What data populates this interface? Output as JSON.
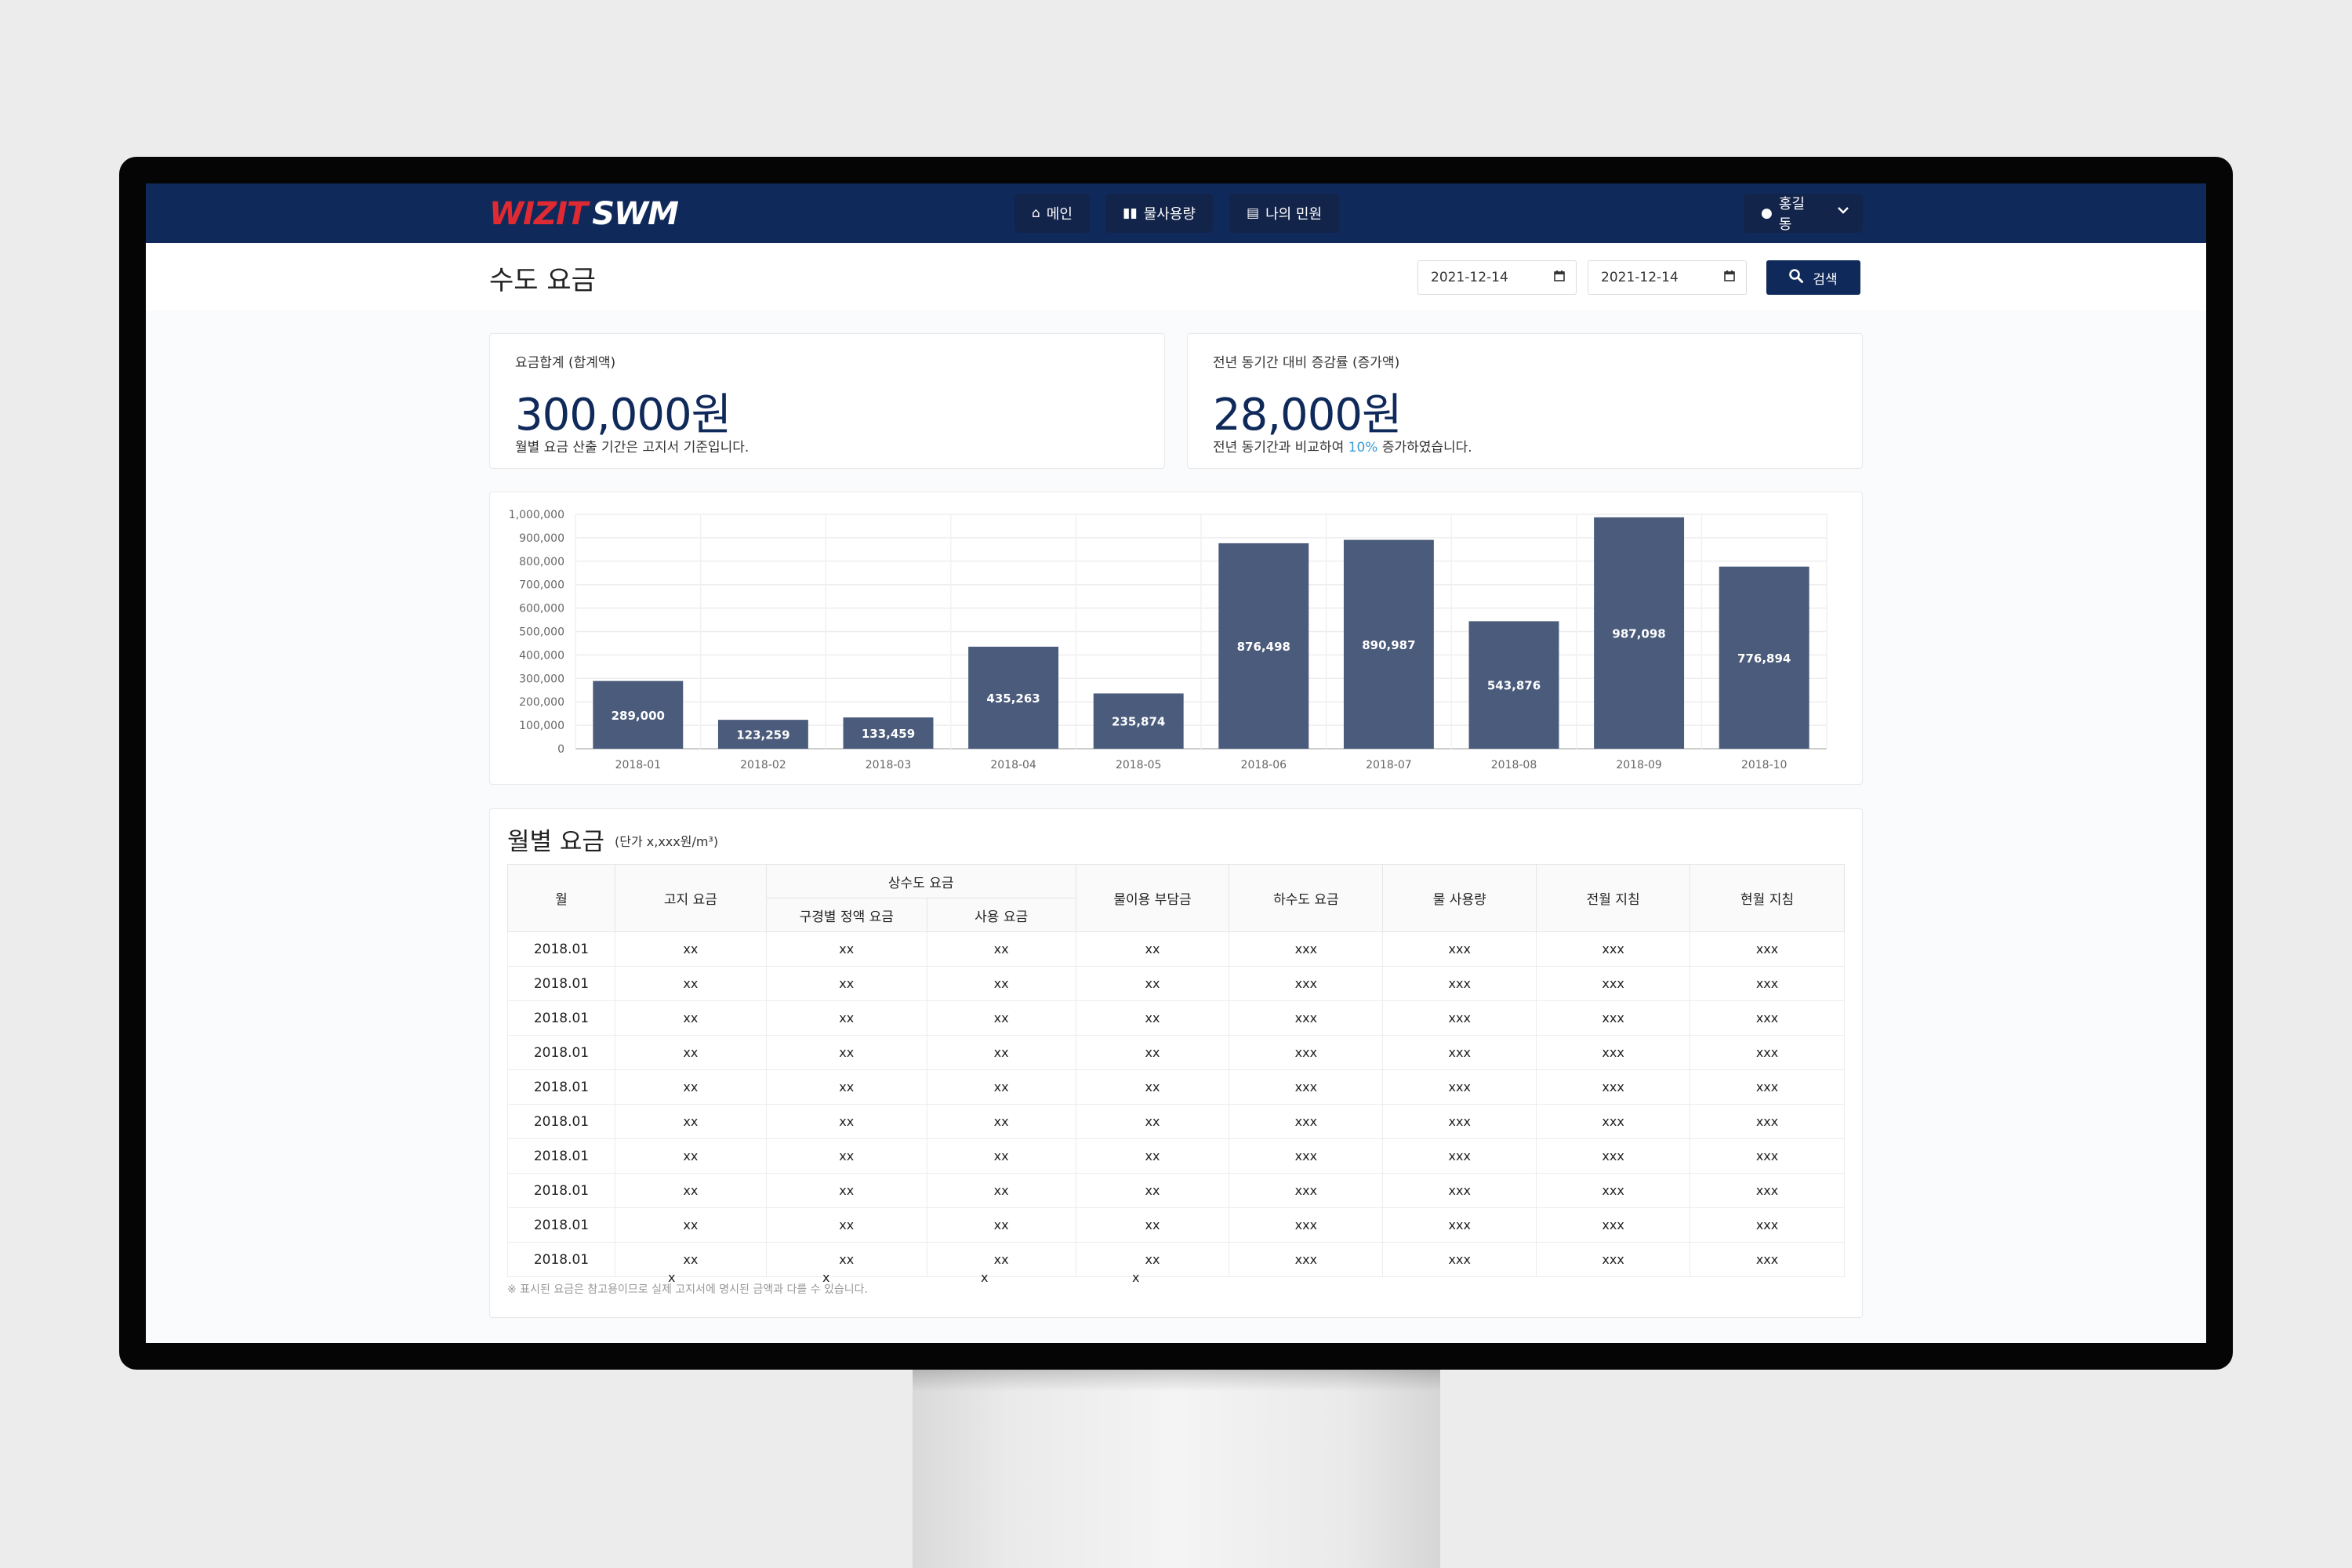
{
  "nav": {
    "logo_part1": "WIZIT",
    "logo_part2": "SWM",
    "items": [
      {
        "label": "메인",
        "icon": "home-icon"
      },
      {
        "label": "물사용량",
        "icon": "book-icon"
      },
      {
        "label": "나의 민원",
        "icon": "clipboard-icon"
      }
    ],
    "user": {
      "name": "홍길동",
      "icon": "user-circle-icon"
    }
  },
  "header": {
    "title": "수도 요금",
    "date_from": "2021-12-14",
    "date_to": "2021-12-14",
    "search_label": "검색"
  },
  "summary": {
    "total": {
      "label": "요금합계 (합계액)",
      "value": "300,000원",
      "note": "월별 요금 산출 기간은 고지서 기준입니다."
    },
    "change": {
      "label": "전년 동기간 대비 증감률 (증가액)",
      "value": "28,000원",
      "note_prefix": "전년 동기간과 비교하여 ",
      "note_highlight": "10%",
      "note_suffix": " 증가하였습니다."
    }
  },
  "colors": {
    "navy": "#0f2a5a",
    "bar": "#4a5b7b",
    "highlight": "#3a9bd9",
    "logo_red": "#e02a33"
  },
  "chart_data": {
    "type": "bar",
    "title": "",
    "xlabel": "",
    "ylabel": "",
    "categories": [
      "2018-01",
      "2018-02",
      "2018-03",
      "2018-04",
      "2018-05",
      "2018-06",
      "2018-07",
      "2018-08",
      "2018-09",
      "2018-10"
    ],
    "values": [
      289000,
      123259,
      133459,
      435263,
      235874,
      876498,
      890987,
      543876,
      987098,
      776894
    ],
    "value_labels": [
      "289,000",
      "123,259",
      "133,459",
      "435,263",
      "235,874",
      "876,498",
      "890,987",
      "543,876",
      "987,098",
      "776,894"
    ],
    "ylim": [
      0,
      1000000
    ],
    "yticks": [
      0,
      100000,
      200000,
      300000,
      400000,
      500000,
      600000,
      700000,
      800000,
      900000,
      1000000
    ],
    "ytick_labels": [
      "0",
      "100,000",
      "200,000",
      "300,000",
      "400,000",
      "500,000",
      "600,000",
      "700,000",
      "800,000",
      "900,000",
      "1,000,000"
    ],
    "grid": true
  },
  "table": {
    "title": "월별 요금",
    "unit": "(단가 x,xxx원/m³)",
    "headers": {
      "month": "월",
      "billed": "고지 요금",
      "water_group": "상수도 요금",
      "district_fixed": "구경별 정액 요금",
      "usage_fee": "사용 요금",
      "water_use_charge": "물이용 부담금",
      "sewer": "하수도 요금",
      "water_amount": "물 사용량",
      "prev_reading": "전월 지침",
      "curr_reading": "현월 지침"
    },
    "rows": [
      [
        "2018.01",
        "xx",
        "xx",
        "xx",
        "xx",
        "xxx",
        "xxx",
        "xxx",
        "xxx"
      ],
      [
        "2018.01",
        "xx",
        "xx",
        "xx",
        "xx",
        "xxx",
        "xxx",
        "xxx",
        "xxx"
      ],
      [
        "2018.01",
        "xx",
        "xx",
        "xx",
        "xx",
        "xxx",
        "xxx",
        "xxx",
        "xxx"
      ],
      [
        "2018.01",
        "xx",
        "xx",
        "xx",
        "xx",
        "xxx",
        "xxx",
        "xxx",
        "xxx"
      ],
      [
        "2018.01",
        "xx",
        "xx",
        "xx",
        "xx",
        "xxx",
        "xxx",
        "xxx",
        "xxx"
      ],
      [
        "2018.01",
        "xx",
        "xx",
        "xx",
        "xx",
        "xxx",
        "xxx",
        "xxx",
        "xxx"
      ],
      [
        "2018.01",
        "xx",
        "xx",
        "xx",
        "xx",
        "xxx",
        "xxx",
        "xxx",
        "xxx"
      ],
      [
        "2018.01",
        "xx",
        "xx",
        "xx",
        "xx",
        "xxx",
        "xxx",
        "xxx",
        "xxx"
      ],
      [
        "2018.01",
        "xx",
        "xx",
        "xx",
        "xx",
        "xxx",
        "xxx",
        "xxx",
        "xxx"
      ],
      [
        "2018.01",
        "xx",
        "xx",
        "xx",
        "xx",
        "xxx",
        "xxx",
        "xxx",
        "xxx"
      ]
    ],
    "footnote": "※ 표시된 요금은 참고용이므로 실제 고지서에 명시된 금액과 다를 수 있습니다.",
    "stray_marks": [
      "x",
      "x",
      "x",
      "x"
    ]
  }
}
